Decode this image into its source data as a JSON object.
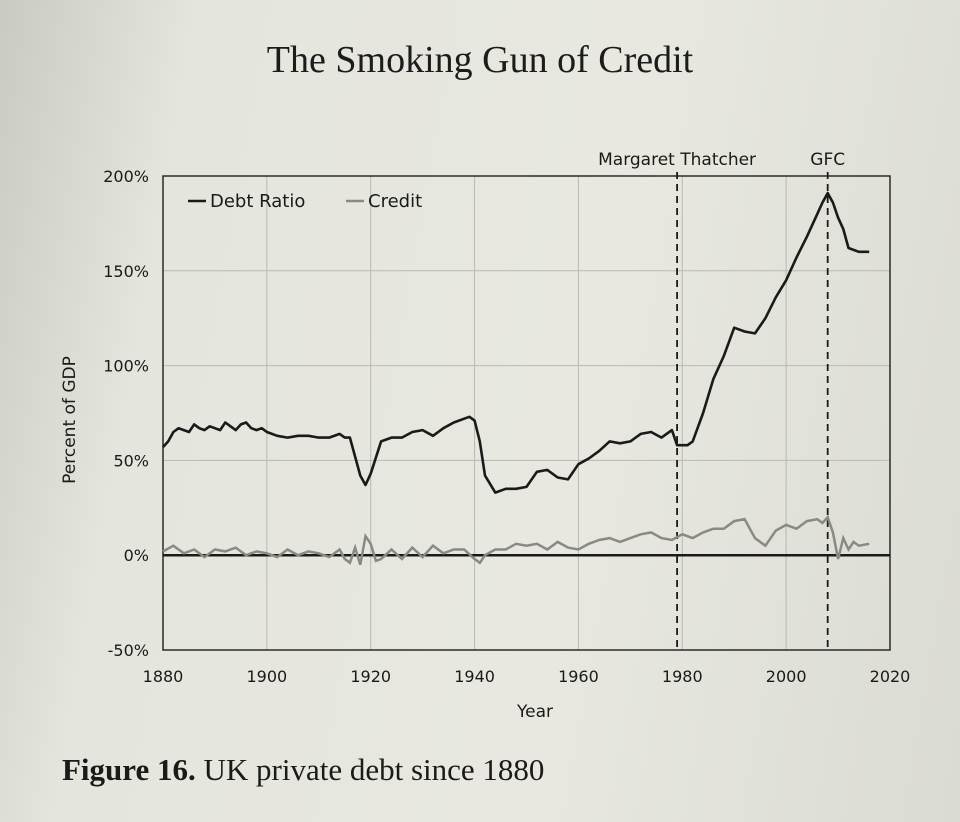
{
  "page": {
    "title": "The Smoking Gun of Credit",
    "caption_bold": "Figure 16.",
    "caption_rest": " UK private debt since 1880"
  },
  "chart_data": {
    "type": "line",
    "xlabel": "Year",
    "ylabel": "Percent of GDP",
    "xlim": [
      1880,
      2020
    ],
    "ylim": [
      -50,
      200
    ],
    "x_ticks": [
      "1880",
      "1900",
      "1920",
      "1940",
      "1960",
      "1980",
      "2000",
      "2020"
    ],
    "y_ticks": [
      "200%",
      "150%",
      "100%",
      "50%",
      "0%",
      "-50%"
    ],
    "grid": true,
    "legend_position": "top-left",
    "annotations": [
      {
        "label": "Margaret Thatcher",
        "x": 1979
      },
      {
        "label": "GFC",
        "x": 2008
      }
    ],
    "series": [
      {
        "name": "Debt Ratio",
        "color": "#1a1a1a",
        "x": [
          1880,
          1881,
          1882,
          1883,
          1884,
          1885,
          1886,
          1887,
          1888,
          1889,
          1890,
          1891,
          1892,
          1893,
          1894,
          1895,
          1896,
          1897,
          1898,
          1899,
          1900,
          1902,
          1904,
          1906,
          1908,
          1910,
          1912,
          1914,
          1915,
          1916,
          1917,
          1918,
          1919,
          1920,
          1922,
          1924,
          1926,
          1928,
          1930,
          1932,
          1934,
          1936,
          1938,
          1939,
          1940,
          1941,
          1942,
          1944,
          1946,
          1948,
          1950,
          1952,
          1954,
          1956,
          1958,
          1960,
          1962,
          1964,
          1966,
          1968,
          1970,
          1972,
          1974,
          1976,
          1978,
          1979,
          1980,
          1981,
          1982,
          1984,
          1986,
          1988,
          1990,
          1992,
          1994,
          1996,
          1998,
          2000,
          2002,
          2004,
          2006,
          2007,
          2008,
          2009,
          2010,
          2011,
          2012,
          2014,
          2016
        ],
        "values": [
          57,
          60,
          65,
          67,
          66,
          65,
          69,
          67,
          66,
          68,
          67,
          66,
          70,
          68,
          66,
          69,
          70,
          67,
          66,
          67,
          65,
          63,
          62,
          63,
          63,
          62,
          62,
          64,
          62,
          62,
          52,
          42,
          37,
          43,
          60,
          62,
          62,
          65,
          66,
          63,
          67,
          70,
          72,
          73,
          71,
          60,
          42,
          33,
          35,
          35,
          36,
          44,
          45,
          41,
          40,
          48,
          51,
          55,
          60,
          59,
          60,
          64,
          65,
          62,
          66,
          58,
          58,
          58,
          60,
          75,
          93,
          105,
          120,
          118,
          117,
          125,
          136,
          145,
          157,
          168,
          180,
          186,
          191,
          186,
          178,
          172,
          162,
          160,
          160
        ]
      },
      {
        "name": "Credit",
        "color": "#8a8a84",
        "x": [
          1880,
          1882,
          1884,
          1886,
          1888,
          1890,
          1892,
          1894,
          1896,
          1898,
          1900,
          1902,
          1904,
          1906,
          1908,
          1910,
          1912,
          1914,
          1915,
          1916,
          1917,
          1918,
          1919,
          1920,
          1921,
          1922,
          1924,
          1926,
          1928,
          1930,
          1932,
          1934,
          1936,
          1938,
          1940,
          1941,
          1942,
          1944,
          1946,
          1948,
          1950,
          1952,
          1954,
          1956,
          1958,
          1960,
          1962,
          1964,
          1966,
          1968,
          1970,
          1972,
          1974,
          1976,
          1978,
          1980,
          1982,
          1984,
          1986,
          1988,
          1990,
          1992,
          1994,
          1996,
          1998,
          2000,
          2002,
          2004,
          2006,
          2007,
          2008,
          2009,
          2010,
          2011,
          2012,
          2013,
          2014,
          2016
        ],
        "values": [
          2,
          5,
          1,
          3,
          -1,
          3,
          2,
          4,
          0,
          2,
          1,
          -1,
          3,
          0,
          2,
          1,
          -1,
          3,
          -2,
          -4,
          4,
          -5,
          10,
          6,
          -3,
          -2,
          3,
          -2,
          4,
          -1,
          5,
          1,
          3,
          3,
          -2,
          -4,
          0,
          3,
          3,
          6,
          5,
          6,
          3,
          7,
          4,
          3,
          6,
          8,
          9,
          7,
          9,
          11,
          12,
          9,
          8,
          11,
          9,
          12,
          14,
          14,
          18,
          19,
          9,
          5,
          13,
          16,
          14,
          18,
          19,
          17,
          20,
          12,
          -2,
          9,
          3,
          7,
          5,
          6
        ]
      }
    ]
  }
}
